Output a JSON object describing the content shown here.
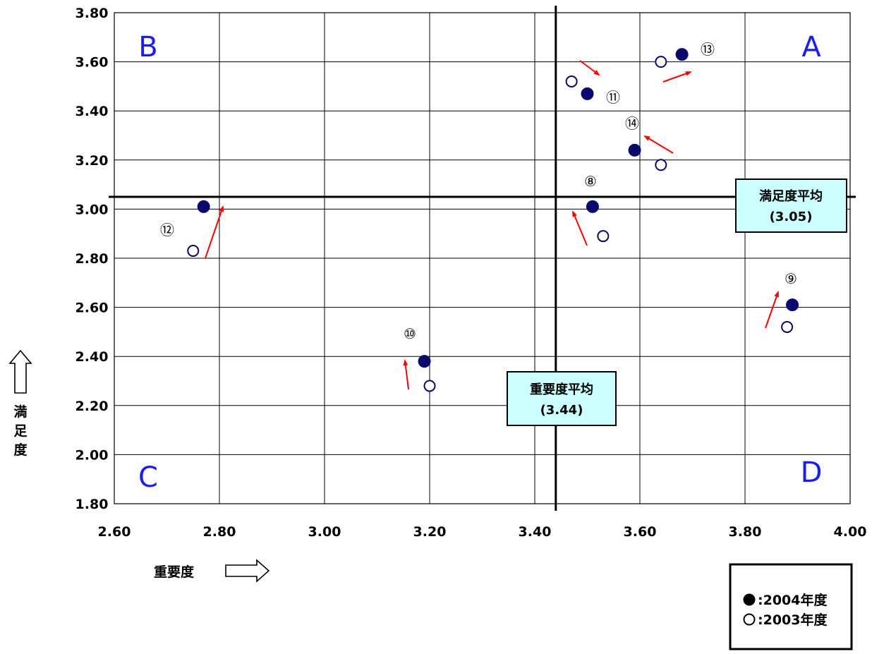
{
  "chart_data": {
    "type": "scatter",
    "x_axis": {
      "label": "重要度",
      "range": [
        2.6,
        4.0
      ],
      "ticks": [
        "2.60",
        "2.80",
        "3.00",
        "3.20",
        "3.40",
        "3.60",
        "3.80",
        "4.00"
      ],
      "tick_values": [
        2.6,
        2.8,
        3.0,
        3.2,
        3.4,
        3.6,
        3.8,
        4.0
      ]
    },
    "y_axis": {
      "label": "満足度",
      "range": [
        1.8,
        3.8
      ],
      "ticks": [
        "1.80",
        "2.00",
        "2.20",
        "2.40",
        "2.60",
        "2.80",
        "3.00",
        "3.20",
        "3.40",
        "3.60",
        "3.80"
      ],
      "tick_values": [
        1.8,
        2.0,
        2.2,
        2.4,
        2.6,
        2.8,
        3.0,
        3.2,
        3.4,
        3.6,
        3.8
      ]
    },
    "grid": true,
    "quadrants": [
      "A",
      "B",
      "C",
      "D"
    ],
    "reference_lines": {
      "importance_average": {
        "label": "重要度平均",
        "value_text": "(3.44)",
        "value": 3.44
      },
      "satisfaction_average": {
        "label": "満足度平均",
        "value_text": "(3.05)",
        "value": 3.05
      }
    },
    "series": [
      {
        "name": "2004年度",
        "marker": "filled",
        "points": [
          {
            "label": "⑧",
            "x": 3.51,
            "y": 3.01
          },
          {
            "label": "⑨",
            "x": 3.89,
            "y": 2.61
          },
          {
            "label": "⑩",
            "x": 3.19,
            "y": 2.38
          },
          {
            "label": "⑪",
            "x": 3.5,
            "y": 3.47
          },
          {
            "label": "⑫",
            "x": 2.77,
            "y": 3.01
          },
          {
            "label": "⑬",
            "x": 3.68,
            "y": 3.63
          },
          {
            "label": "⑭",
            "x": 3.59,
            "y": 3.24
          }
        ]
      },
      {
        "name": "2003年度",
        "marker": "open",
        "points": [
          {
            "label": "⑧",
            "x": 3.53,
            "y": 2.89
          },
          {
            "label": "⑨",
            "x": 3.88,
            "y": 2.52
          },
          {
            "label": "⑩",
            "x": 3.2,
            "y": 2.28
          },
          {
            "label": "⑪",
            "x": 3.47,
            "y": 3.52
          },
          {
            "label": "⑫",
            "x": 2.75,
            "y": 2.83
          },
          {
            "label": "⑬",
            "x": 3.64,
            "y": 3.6
          },
          {
            "label": "⑭",
            "x": 3.64,
            "y": 3.18
          }
        ]
      }
    ],
    "legend": {
      "placement": "bottom-right",
      "entries": [
        {
          "symbol": "●",
          "text": ":2004年度"
        },
        {
          "symbol": "○",
          "text": ":2003年度"
        }
      ]
    },
    "colors": {
      "point": "#0a0a6e",
      "arrow": "#ff0000",
      "quadrant_letter": "#1a1aff",
      "label_box": "#ccffff"
    }
  }
}
